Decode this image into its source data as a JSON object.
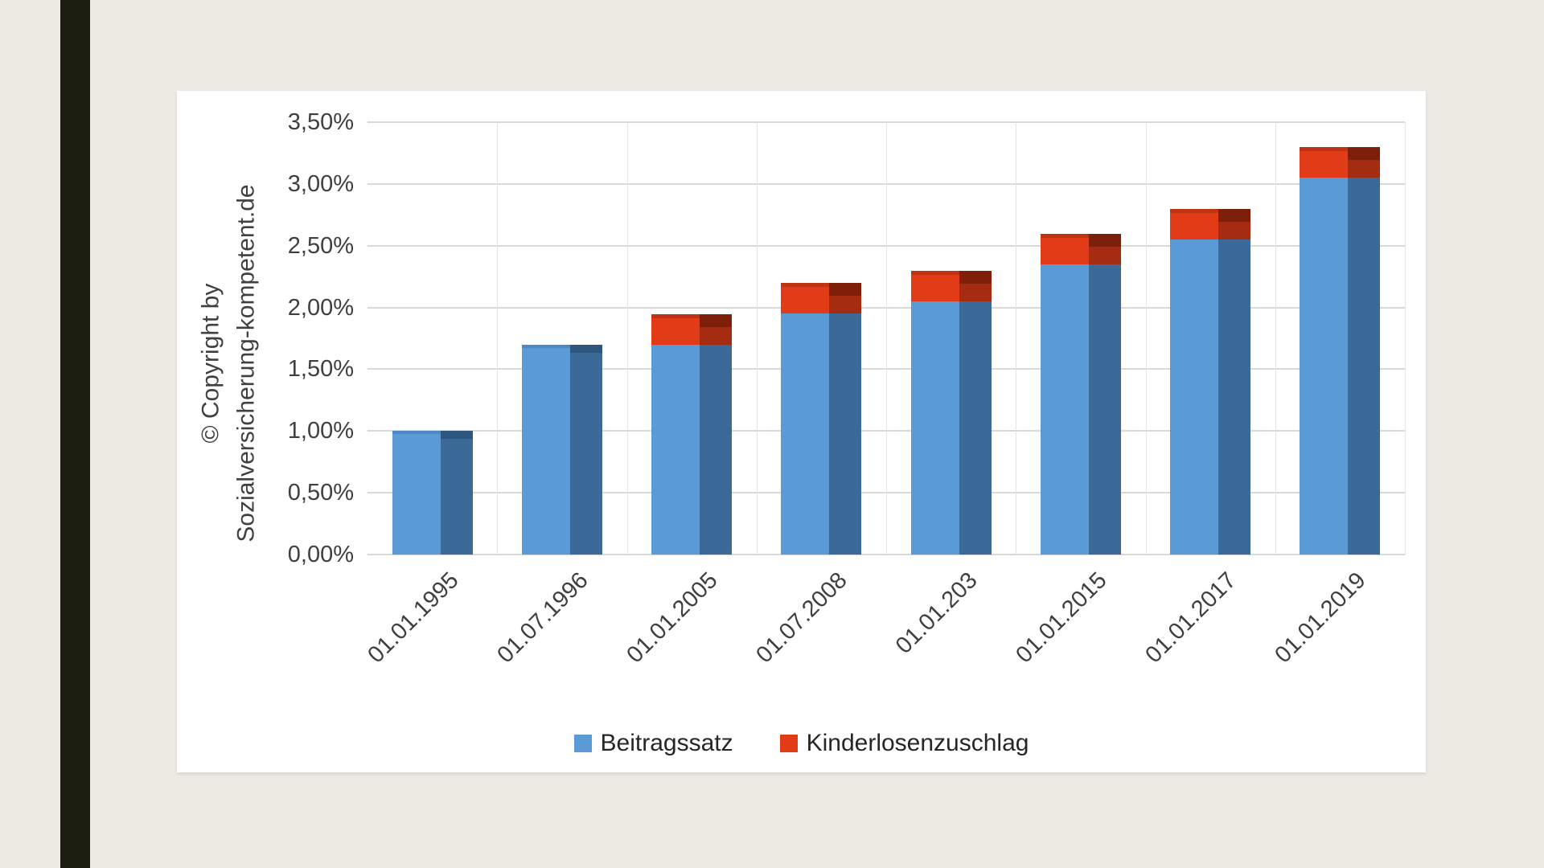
{
  "page": {
    "background_color": "#EDEAE3",
    "stripe_color": "#1B1D10",
    "panel_color": "#FFFFFF"
  },
  "watermark": {
    "line1": "© Copyright by",
    "line2": "Sozialversicherung-kompetent.de"
  },
  "chart_data": {
    "type": "bar",
    "stacked": true,
    "style": "3d-front-side-faces",
    "title": "",
    "xlabel": "",
    "ylabel": "",
    "categories": [
      "01.01.1995",
      "01.07.1996",
      "01.01.2005",
      "01.07.2008",
      "01.01.203",
      "01.01.2015",
      "01.01.2017",
      "01.01.2019"
    ],
    "series": [
      {
        "name": "Beitragssatz",
        "values": [
          1.0,
          1.7,
          1.7,
          1.95,
          2.05,
          2.35,
          2.55,
          3.05
        ],
        "front_color": "#5B9BD5",
        "front_top_color": "#4C88C4",
        "side_color": "#3B6A99",
        "side_top_color": "#2F567E"
      },
      {
        "name": "Kinderlosenzuschlag",
        "values": [
          0,
          0,
          0.25,
          0.25,
          0.25,
          0.25,
          0.25,
          0.25
        ],
        "front_color": "#E23B17",
        "front_top_color": "#BF3311",
        "side_color": "#A52C10",
        "side_top_color": "#7E2009"
      }
    ],
    "totals": [
      1.0,
      1.7,
      1.95,
      2.2,
      2.3,
      2.6,
      2.8,
      3.3
    ],
    "y_ticks": [
      "0,00%",
      "0,50%",
      "1,00%",
      "1,50%",
      "2,00%",
      "2,50%",
      "3,00%",
      "3,50%"
    ],
    "y_tick_values": [
      0,
      0.5,
      1,
      1.5,
      2,
      2.5,
      3,
      3.5
    ],
    "ylim": [
      0,
      3.5
    ],
    "unit": "%",
    "grid": true,
    "gridline_color": "#D9D9D9",
    "vertical_gridline_color": "#E4E4E4",
    "axis_text_color": "#3F3F3F",
    "legend_position": "bottom"
  }
}
